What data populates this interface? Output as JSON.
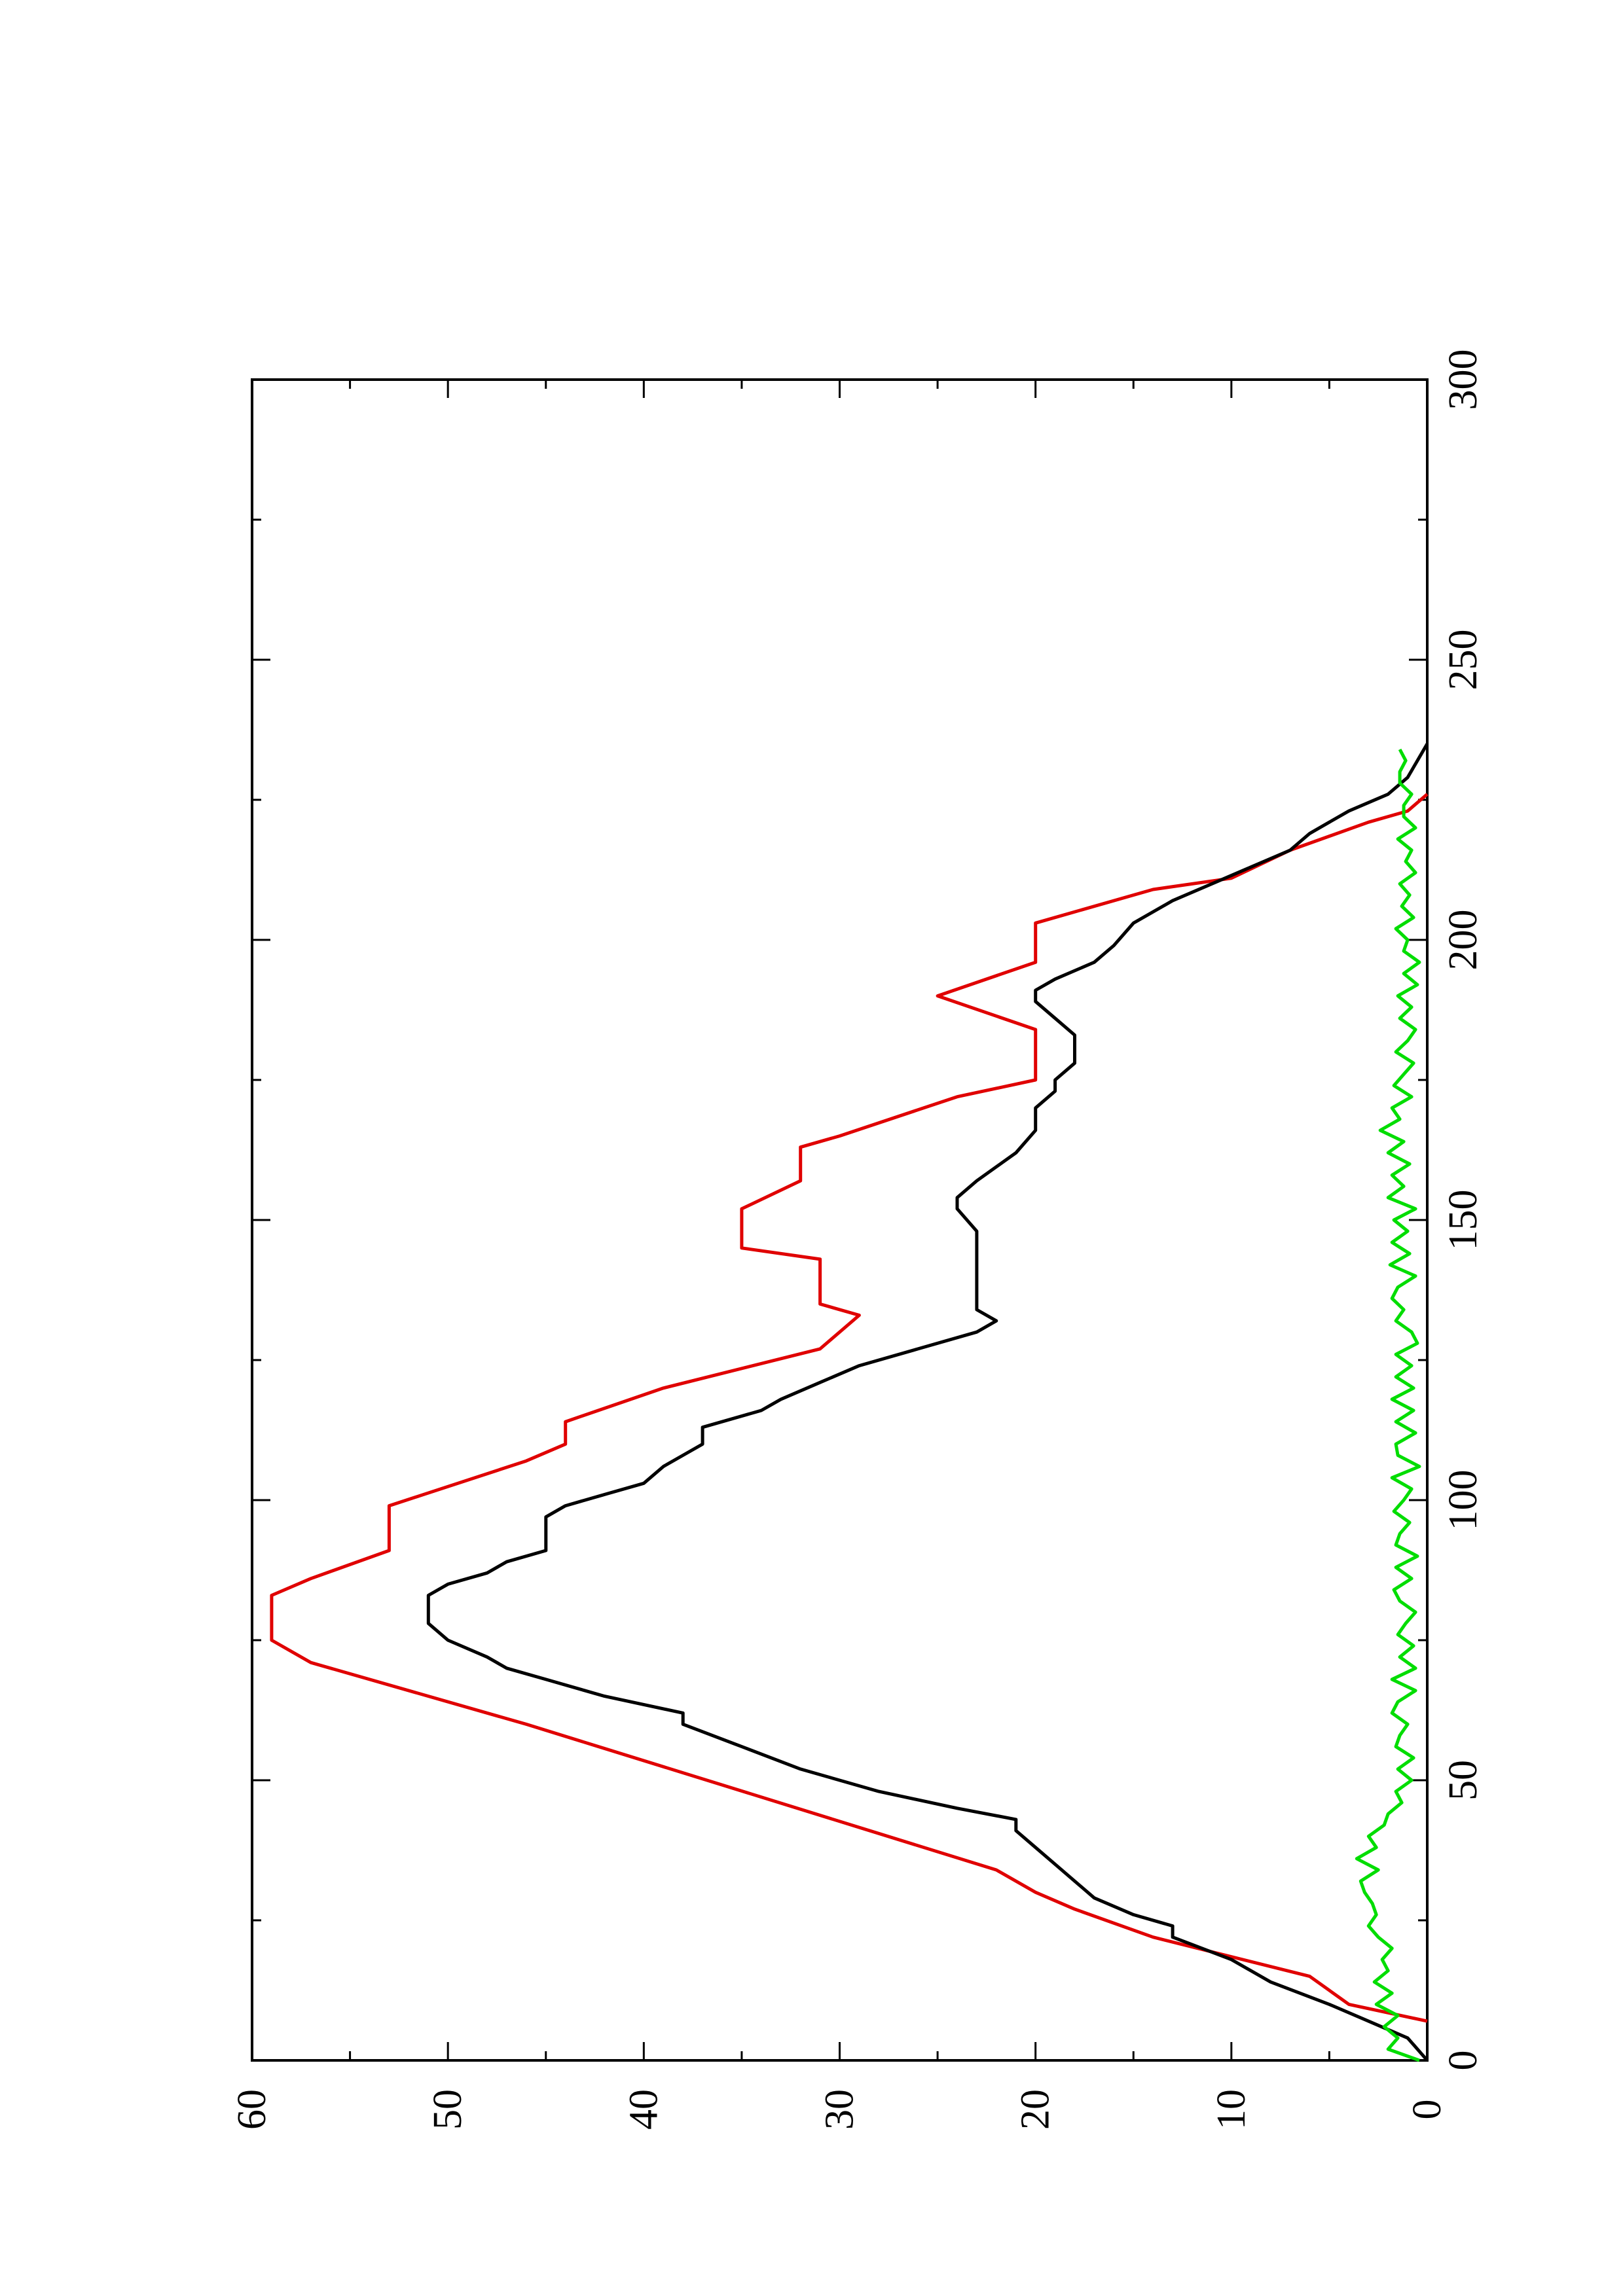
{
  "chart_data": {
    "type": "line",
    "orientation": "rotated-90-ccw",
    "title": "",
    "xlabel": "",
    "ylabel": "",
    "xlim": [
      0,
      300
    ],
    "ylim": [
      0,
      60
    ],
    "x_ticks": [
      0,
      50,
      100,
      150,
      200,
      250,
      300
    ],
    "y_ticks": [
      0,
      10,
      20,
      30,
      40,
      50,
      60
    ],
    "x_tick_labels": [
      "0",
      "50",
      "100",
      "150",
      "200",
      "250",
      "300"
    ],
    "y_tick_labels": [
      "0",
      "10",
      "20",
      "30",
      "40",
      "50",
      "60"
    ],
    "grid": false,
    "legend": "none",
    "series": [
      {
        "color": "#e00000",
        "style": "step",
        "x": [
          7,
          10,
          10,
          15,
          15,
          22,
          22,
          27,
          27,
          30,
          30,
          34,
          34,
          60,
          60,
          71,
          71,
          75,
          75,
          83,
          83,
          86,
          86,
          91,
          91,
          99,
          99,
          107,
          107,
          110,
          110,
          114,
          114,
          120,
          120,
          127,
          133,
          133,
          135,
          135,
          143,
          143,
          145,
          145,
          152,
          152,
          157,
          157,
          163,
          163,
          165,
          165,
          172,
          172,
          175,
          175,
          184,
          184,
          190,
          190,
          196,
          196,
          203,
          203,
          209,
          209,
          211,
          211,
          216,
          216,
          221,
          221,
          223,
          223,
          226
        ],
        "y": [
          0,
          4,
          4,
          6,
          6,
          14,
          14,
          18,
          18,
          20,
          20,
          22,
          22,
          46,
          46,
          57,
          57,
          59,
          59,
          59,
          59,
          57,
          57,
          53,
          53,
          53,
          53,
          46,
          46,
          44,
          44,
          44,
          44,
          39,
          39,
          31,
          29,
          29,
          31,
          31,
          31,
          31,
          35,
          35,
          35,
          35,
          32,
          32,
          32,
          32,
          30,
          30,
          24,
          24,
          20,
          20,
          20,
          20,
          25,
          25,
          20,
          20,
          20,
          20,
          14,
          14,
          10,
          10,
          7,
          7,
          3,
          3,
          1,
          1,
          0
        ]
      },
      {
        "color": "#000000",
        "style": "line",
        "x": [
          0,
          4,
          7,
          10,
          14,
          18,
          22,
          24,
          26,
          29,
          32,
          35,
          38,
          41,
          43,
          45,
          48,
          52,
          56,
          60,
          62,
          65,
          68,
          70,
          72,
          75,
          78,
          80,
          83,
          85,
          87,
          89,
          91,
          94,
          97,
          99,
          101,
          103,
          106,
          108,
          110,
          113,
          116,
          118,
          121,
          124,
          127,
          130,
          132,
          134,
          137,
          140,
          144,
          148,
          152,
          154,
          157,
          162,
          166,
          170,
          173,
          175,
          178,
          181,
          183,
          186,
          189,
          191,
          193,
          196,
          199,
          203,
          207,
          210,
          213,
          216,
          219,
          221,
          223,
          226,
          229,
          232,
          235
        ],
        "y": [
          0,
          1,
          3,
          5,
          8,
          10,
          13,
          13,
          15,
          17,
          18,
          19,
          20,
          21,
          21,
          24,
          28,
          32,
          35,
          38,
          38,
          42,
          45,
          47,
          48,
          50,
          51,
          51,
          51,
          50,
          48,
          47,
          45,
          45,
          45,
          44,
          42,
          40,
          39,
          38,
          37,
          37,
          34,
          33,
          31,
          29,
          26,
          23,
          22,
          23,
          23,
          23,
          23,
          23,
          24,
          24,
          23,
          21,
          20,
          20,
          19,
          19,
          18,
          18,
          18,
          19,
          20,
          20,
          19,
          17,
          16,
          15,
          13,
          11,
          9,
          7,
          6,
          5,
          4,
          2,
          1,
          0.5,
          0
        ]
      },
      {
        "color": "#00dd00",
        "style": "line",
        "x": [
          0,
          2,
          4,
          6,
          8,
          10,
          12,
          14,
          16,
          18,
          20,
          22,
          24,
          26,
          28,
          30,
          32,
          34,
          36,
          38,
          40,
          42,
          44,
          46,
          48,
          50,
          52,
          54,
          56,
          58,
          60,
          62,
          64,
          66,
          68,
          70,
          72,
          74,
          76,
          78,
          80,
          82,
          84,
          86,
          88,
          90,
          92,
          94,
          96,
          98,
          100,
          102,
          104,
          106,
          108,
          110,
          112,
          114,
          116,
          118,
          120,
          122,
          124,
          126,
          128,
          130,
          132,
          134,
          136,
          138,
          140,
          142,
          144,
          146,
          148,
          150,
          152,
          154,
          156,
          158,
          160,
          162,
          164,
          166,
          168,
          170,
          172,
          174,
          176,
          178,
          180,
          182,
          184,
          186,
          188,
          190,
          192,
          194,
          196,
          198,
          200,
          202,
          204,
          206,
          208,
          210,
          212,
          214,
          216,
          218,
          220,
          222,
          224,
          226,
          228,
          230,
          232,
          234
        ],
        "y": [
          0.4,
          2.0,
          1.5,
          2.2,
          1.5,
          2.6,
          1.8,
          2.7,
          2.0,
          2.3,
          1.8,
          2.5,
          3.0,
          2.6,
          2.8,
          3.2,
          3.4,
          2.5,
          3.6,
          2.6,
          3.0,
          2.2,
          2.0,
          1.3,
          1.6,
          0.8,
          1.5,
          0.7,
          1.6,
          1.4,
          1.0,
          1.8,
          1.5,
          0.6,
          1.8,
          0.6,
          1.4,
          0.7,
          1.5,
          1.1,
          0.6,
          1.4,
          1.7,
          0.8,
          1.6,
          0.5,
          1.6,
          1.4,
          0.9,
          1.7,
          1.2,
          0.8,
          1.8,
          0.4,
          1.5,
          1.6,
          0.6,
          1.6,
          0.7,
          1.8,
          0.7,
          1.6,
          0.8,
          1.6,
          0.5,
          0.8,
          1.6,
          1.2,
          1.8,
          1.5,
          0.6,
          1.9,
          0.9,
          1.8,
          1.0,
          1.7,
          0.6,
          2.0,
          1.2,
          1.8,
          0.9,
          2.0,
          1.2,
          2.4,
          1.4,
          1.8,
          0.8,
          1.7,
          1.2,
          0.7,
          1.6,
          1.0,
          0.6,
          1.4,
          0.8,
          1.5,
          0.5,
          1.2,
          0.4,
          1.2,
          1.0,
          1.6,
          0.7,
          1.3,
          0.9,
          1.4,
          0.6,
          1.1,
          0.8,
          1.5,
          0.6,
          1.2,
          1.2,
          0.8,
          1.4,
          1.4,
          1.1,
          1.4
        ]
      }
    ]
  },
  "colors": {
    "axis": "#000000",
    "background": "#ffffff"
  }
}
